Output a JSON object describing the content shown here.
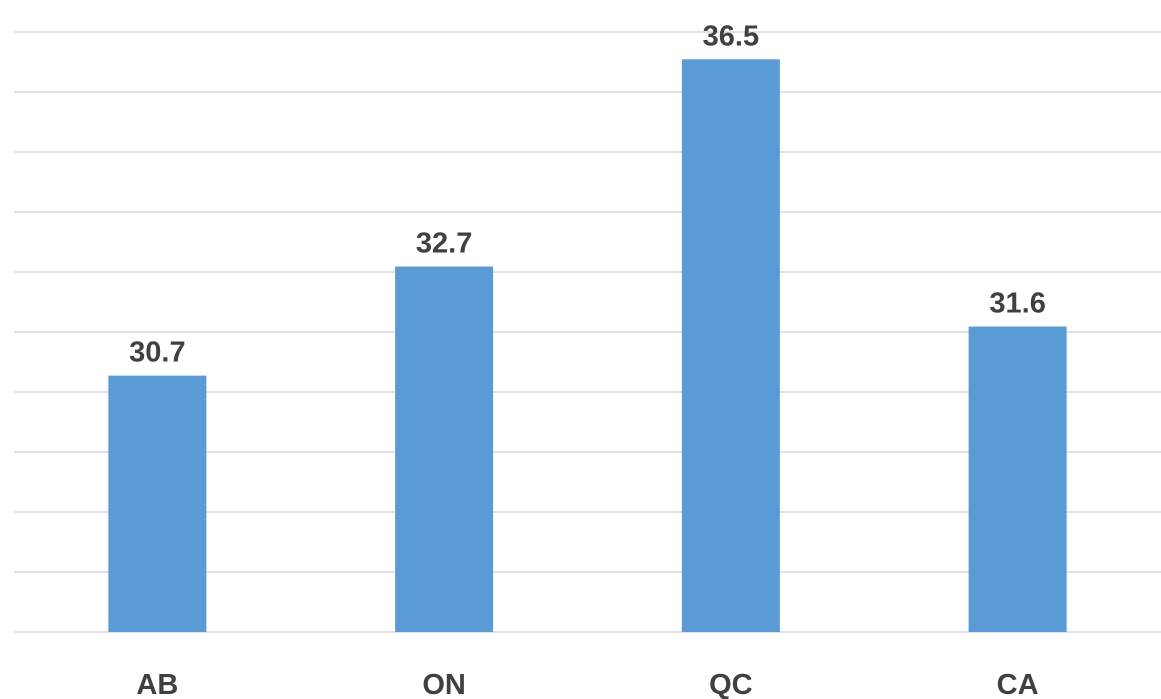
{
  "chart_data": {
    "type": "bar",
    "categories": [
      "AB",
      "ON",
      "QC",
      "CA"
    ],
    "values": [
      30.7,
      32.7,
      36.5,
      31.6
    ],
    "data_labels": [
      "30.7",
      "32.7",
      "36.5",
      "31.6"
    ],
    "title": "",
    "xlabel": "",
    "ylabel": "",
    "ylim": [
      26,
      37
    ],
    "y_axis_labels_visible": false,
    "grid": true,
    "legend": "none",
    "bar_color": "#5b9bd5",
    "gridline_color": "#d9d9d9",
    "label_color": "#404040"
  }
}
